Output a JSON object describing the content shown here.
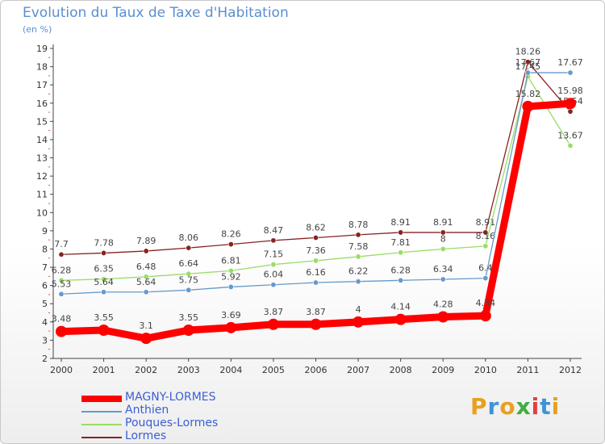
{
  "chart_data": {
    "type": "line",
    "title": "Evolution du Taux de Taxe d'Habitation",
    "subtitle": "(en %)",
    "x": [
      "2000",
      "2001",
      "2002",
      "2003",
      "2004",
      "2005",
      "2006",
      "2007",
      "2008",
      "2009",
      "2010",
      "2011",
      "2012"
    ],
    "ylim": [
      2,
      19
    ],
    "yticks": [
      2,
      3,
      4,
      5,
      6,
      7,
      8,
      9,
      10,
      11,
      12,
      13,
      14,
      15,
      16,
      17,
      18,
      19
    ],
    "grid": false,
    "legend": "bottom-left",
    "series": [
      {
        "name": "MAGNY-LORMES",
        "color": "#ff0000",
        "values": [
          3.48,
          3.55,
          3.1,
          3.55,
          3.69,
          3.87,
          3.87,
          4,
          4.14,
          4.28,
          4.34,
          15.82,
          15.98
        ],
        "labels": [
          "3.48",
          "3.55",
          "3.1",
          "3.55",
          "3.69",
          "3.87",
          "3.87",
          "4",
          "4.14",
          "4.28",
          "4.34",
          "15.82",
          "15.98"
        ]
      },
      {
        "name": "Anthien",
        "color": "#6699cc",
        "values": [
          5.53,
          5.64,
          5.64,
          5.75,
          5.92,
          6.04,
          6.16,
          6.22,
          6.28,
          6.34,
          6.4,
          17.67,
          17.67
        ],
        "labels": [
          "5.53",
          "5.64",
          "5.64",
          "5.75",
          "5.92",
          "6.04",
          "6.16",
          "6.22",
          "6.28",
          "6.34",
          "6.4",
          "17.67",
          "17.67"
        ]
      },
      {
        "name": "Pouques-Lormes",
        "color": "#99dd66",
        "values": [
          6.28,
          6.35,
          6.48,
          6.64,
          6.81,
          7.15,
          7.36,
          7.58,
          7.81,
          8,
          8.16,
          17.45,
          13.67
        ],
        "labels": [
          "6.28",
          "6.35",
          "6.48",
          "6.64",
          "6.81",
          "7.15",
          "7.36",
          "7.58",
          "7.81",
          "8",
          "8.16",
          "17.45",
          "13.67"
        ]
      },
      {
        "name": "Lormes",
        "color": "#882222",
        "values": [
          7.7,
          7.78,
          7.89,
          8.06,
          8.26,
          8.47,
          8.62,
          8.78,
          8.91,
          8.91,
          8.91,
          18.26,
          15.54
        ],
        "labels": [
          "7.7",
          "7.78",
          "7.89",
          "8.06",
          "8.26",
          "8.47",
          "8.62",
          "8.78",
          "8.91",
          "8.91",
          "8.91",
          "18.26",
          "15.54"
        ]
      }
    ]
  },
  "logo": {
    "letters": [
      "P",
      "r",
      "o",
      "x",
      "i",
      "t",
      "i"
    ],
    "colors": [
      "#e8a020",
      "#3f93d6",
      "#e8a020",
      "#3fae3f",
      "#e04040",
      "#3f93d6",
      "#e8a020"
    ]
  }
}
